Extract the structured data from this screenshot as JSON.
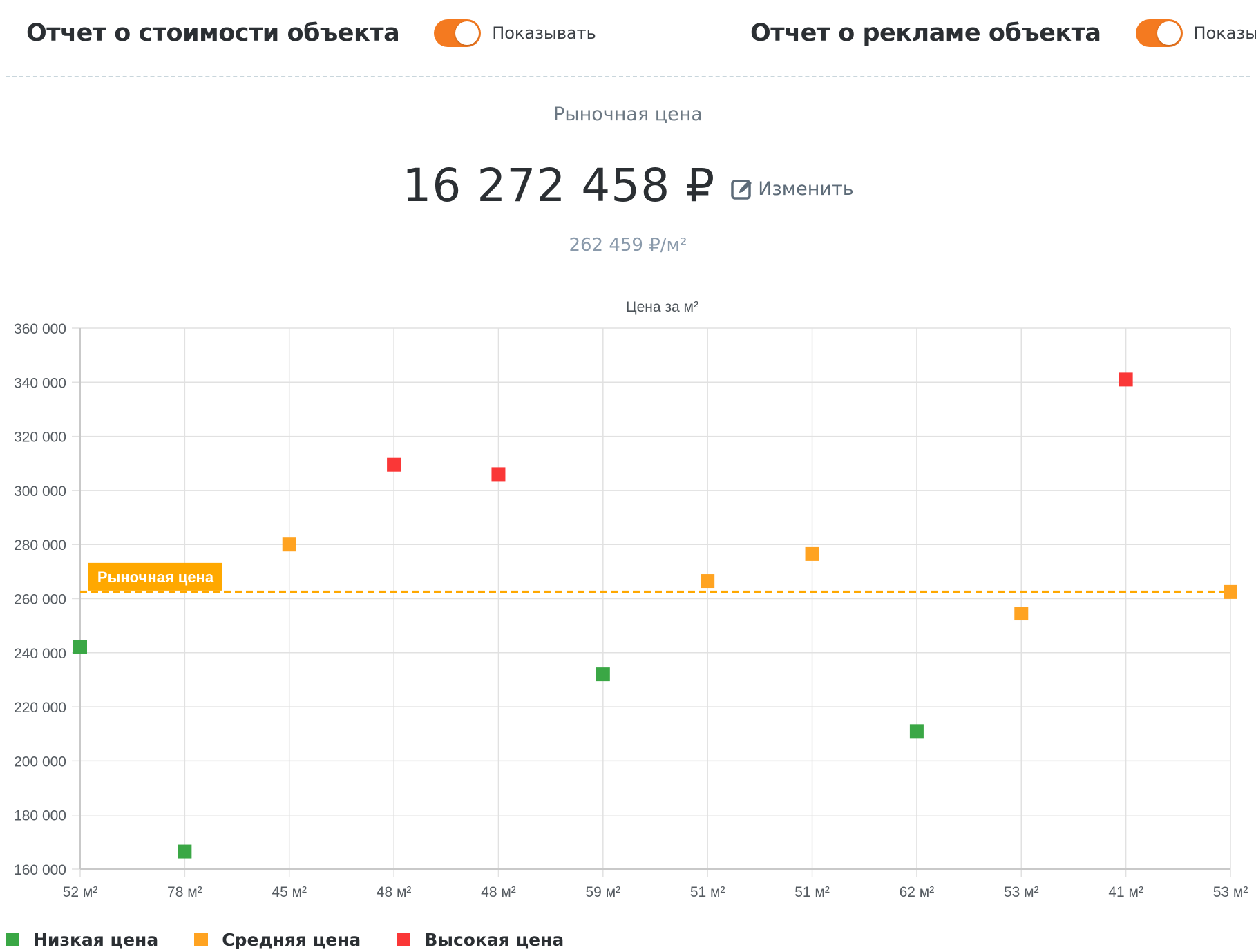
{
  "reports": {
    "cost": {
      "title": "Отчет о стоимости объекта",
      "toggle_label": "Показывать",
      "enabled": true
    },
    "ads": {
      "title": "Отчет о рекламе объекта",
      "toggle_label": "Показывать",
      "enabled": true
    }
  },
  "market": {
    "caption": "Рыночная цена",
    "price": "16 272 458 ₽",
    "edit_label": "Изменить",
    "price_per_m": "262 459 ₽/м²"
  },
  "colors": {
    "accent": "#f47a20",
    "low": "#3aa745",
    "mid": "#ffa321",
    "high": "#fa3737",
    "reference": "#ffa800"
  },
  "chart_data": {
    "type": "scatter",
    "title": "Цена за м²",
    "ylim": [
      160000,
      360000
    ],
    "y_ticks": [
      "360 000",
      "340 000",
      "320 000",
      "300 000",
      "280 000",
      "260 000",
      "240 000",
      "220 000",
      "200 000",
      "180 000",
      "160 000"
    ],
    "y_tick_values": [
      360000,
      340000,
      320000,
      300000,
      280000,
      260000,
      240000,
      220000,
      200000,
      180000,
      160000
    ],
    "categories": [
      "52 м²",
      "78 м²",
      "45 м²",
      "48 м²",
      "48 м²",
      "59 м²",
      "51 м²",
      "51 м²",
      "62 м²",
      "53 м²",
      "41 м²",
      "53 м²"
    ],
    "points": [
      {
        "value": 242000,
        "group": "low"
      },
      {
        "value": 166500,
        "group": "low"
      },
      {
        "value": 280000,
        "group": "mid"
      },
      {
        "value": 309500,
        "group": "high"
      },
      {
        "value": 306000,
        "group": "high"
      },
      {
        "value": 232000,
        "group": "low"
      },
      {
        "value": 266500,
        "group": "mid"
      },
      {
        "value": 276500,
        "group": "mid"
      },
      {
        "value": 211000,
        "group": "low"
      },
      {
        "value": 254500,
        "group": "mid"
      },
      {
        "value": 341000,
        "group": "high"
      },
      {
        "value": 262459,
        "group": "mid"
      }
    ],
    "reference_line": {
      "label": "Рыночная цена",
      "value": 262459
    },
    "legend": [
      {
        "key": "low",
        "label": "Низкая цена"
      },
      {
        "key": "mid",
        "label": "Средняя цена"
      },
      {
        "key": "high",
        "label": "Высокая цена"
      }
    ],
    "grid": true,
    "legend_position": "bottom-left"
  }
}
